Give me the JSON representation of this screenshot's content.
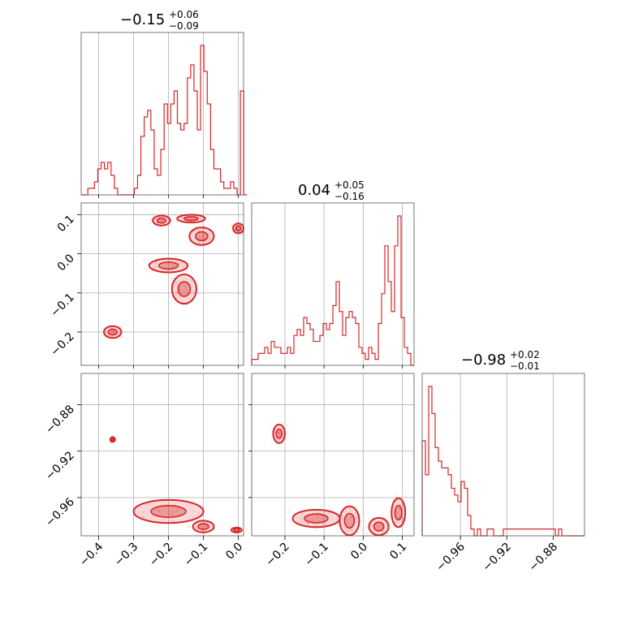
{
  "chart_data": {
    "type": "corner",
    "color": "#d62728",
    "parameters": [
      {
        "index": 0,
        "range": [
          -0.45,
          0.015
        ],
        "ticks": [
          -0.4,
          -0.3,
          -0.2,
          -0.1,
          0.0
        ],
        "tick_labels": [
          "−0.4",
          "−0.3",
          "−0.2",
          "−0.1",
          "0.0"
        ],
        "title": {
          "median": "−0.15",
          "plus": "+0.06",
          "minus": "−0.09"
        }
      },
      {
        "index": 1,
        "range": [
          -0.285,
          0.13
        ],
        "ticks": [
          -0.2,
          -0.1,
          0.0,
          0.1
        ],
        "tick_labels": [
          "−0.2",
          "−0.1",
          "0.0",
          "0.1"
        ],
        "title": {
          "median": "0.04",
          "plus": "+0.05",
          "minus": "−0.16"
        }
      },
      {
        "index": 2,
        "range": [
          -0.993,
          -0.853
        ],
        "ticks": [
          -0.96,
          -0.92,
          -0.88
        ],
        "tick_labels": [
          "−0.96",
          "−0.92",
          "−0.88"
        ],
        "title": {
          "median": "−0.98",
          "plus": "+0.02",
          "minus": "−0.01"
        }
      }
    ],
    "histograms": [
      {
        "param": 0,
        "bin_edges_start": -0.45,
        "bin_width": 0.0095,
        "counts": [
          0,
          0,
          1,
          1,
          2,
          4,
          5,
          4,
          5,
          3,
          1,
          0,
          0,
          0,
          0,
          0,
          1,
          3,
          9,
          12,
          13,
          10,
          4,
          3,
          7,
          14,
          11,
          14,
          16,
          11,
          10,
          11,
          18,
          20,
          16,
          10,
          23,
          19,
          14,
          7,
          4,
          4,
          2,
          1,
          1,
          2,
          1,
          0,
          16,
          0
        ]
      }
    ],
    "histograms_2": [
      {
        "param": 1,
        "bin_edges_start": -0.285,
        "bin_width": 0.0083,
        "counts": [
          1,
          1,
          2,
          2,
          3,
          2,
          4,
          3,
          3,
          2,
          2,
          3,
          2,
          5,
          6,
          5,
          8,
          7,
          6,
          4,
          4,
          5,
          7,
          6,
          7,
          10,
          14,
          9,
          5,
          8,
          9,
          8,
          7,
          3,
          2,
          1,
          3,
          2,
          1,
          7,
          12,
          20,
          14,
          9,
          20,
          25,
          8,
          3,
          2,
          0
        ]
      }
    ],
    "histograms_3": [
      {
        "param": 2,
        "bin_edges_start": -0.993,
        "bin_width": 0.0028,
        "counts": [
          14,
          9,
          22,
          18,
          13,
          11,
          10,
          10,
          9,
          7,
          6,
          5,
          8,
          7,
          3,
          1,
          0,
          1,
          0,
          0,
          1,
          1,
          0,
          0,
          0,
          1,
          1,
          1,
          1,
          1,
          1,
          1,
          1,
          1,
          1,
          1,
          1,
          1,
          1,
          1,
          1,
          0,
          1,
          0,
          0,
          0,
          0,
          0,
          0,
          0
        ]
      }
    ],
    "scatter_panels": [
      {
        "x_param": 0,
        "y_param": 1
      },
      {
        "x_param": 0,
        "y_param": 2
      },
      {
        "x_param": 1,
        "y_param": 2
      }
    ],
    "modes_01": [
      {
        "x": -0.22,
        "y": 0.085,
        "dx": 0.05,
        "dy": 0.025
      },
      {
        "x": -0.135,
        "y": 0.09,
        "dx": 0.08,
        "dy": 0.02
      },
      {
        "x": -0.105,
        "y": 0.045,
        "dx": 0.07,
        "dy": 0.045
      },
      {
        "x": -0.2,
        "y": -0.03,
        "dx": 0.11,
        "dy": 0.035
      },
      {
        "x": -0.155,
        "y": -0.09,
        "dx": 0.07,
        "dy": 0.075
      },
      {
        "x": 0.0,
        "y": 0.065,
        "dx": 0.03,
        "dy": 0.025
      },
      {
        "x": -0.36,
        "y": -0.2,
        "dx": 0.05,
        "dy": 0.03
      }
    ],
    "modes_02": [
      {
        "x": -0.2,
        "y": -0.972,
        "dx": 0.2,
        "dy": 0.02
      },
      {
        "x": -0.1,
        "y": -0.985,
        "dx": 0.06,
        "dy": 0.01
      },
      {
        "x": -0.005,
        "y": -0.988,
        "dx": 0.03,
        "dy": 0.004
      },
      {
        "x": -0.36,
        "y": -0.91,
        "dx": 0.01,
        "dy": 0.004
      }
    ],
    "modes_12": [
      {
        "x": -0.12,
        "y": -0.978,
        "dx": 0.12,
        "dy": 0.015
      },
      {
        "x": -0.035,
        "y": -0.98,
        "dx": 0.05,
        "dy": 0.025
      },
      {
        "x": 0.04,
        "y": -0.985,
        "dx": 0.05,
        "dy": 0.015
      },
      {
        "x": 0.09,
        "y": -0.973,
        "dx": 0.035,
        "dy": 0.025
      },
      {
        "x": -0.215,
        "y": -0.905,
        "dx": 0.03,
        "dy": 0.016
      }
    ]
  }
}
